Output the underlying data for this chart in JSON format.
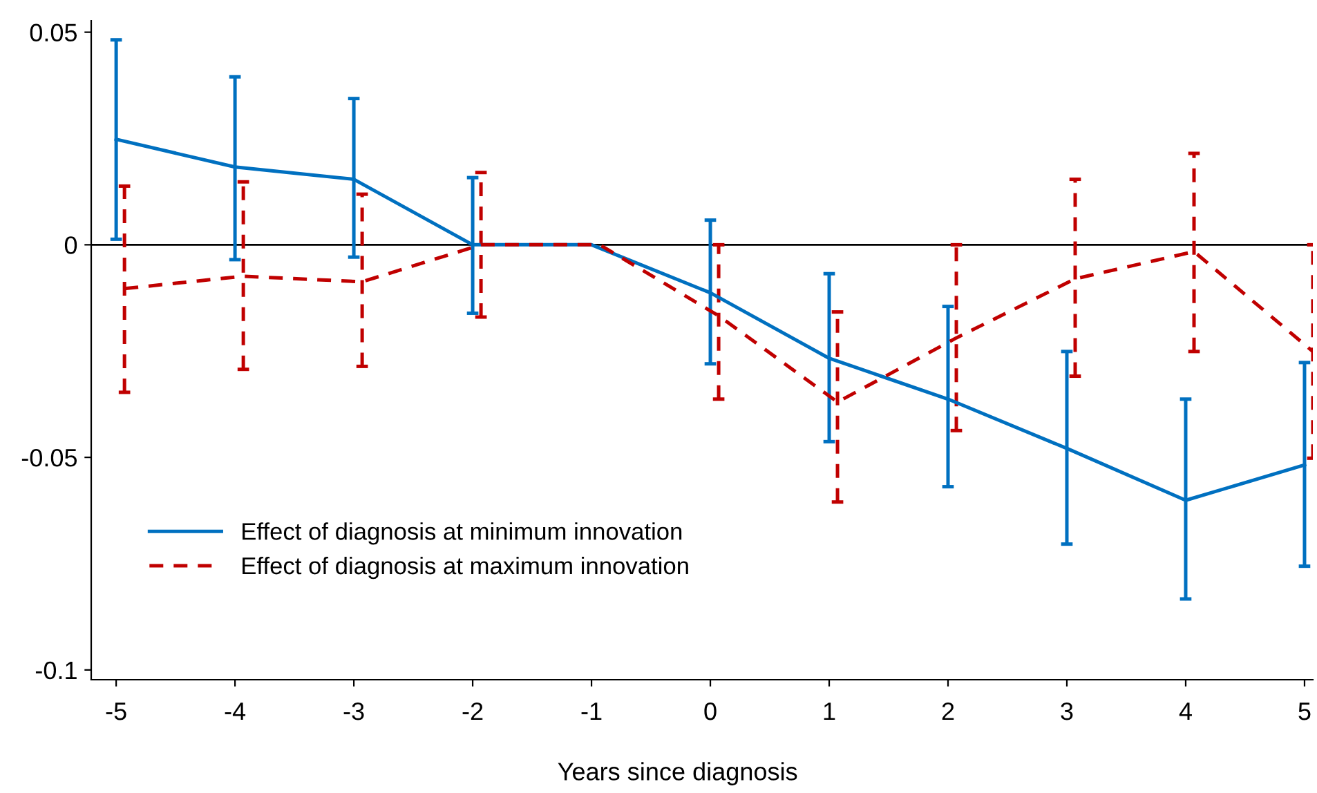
{
  "chart_data": {
    "type": "line",
    "xlabel": "Years since diagnosis",
    "x": [
      -5,
      -4,
      -3,
      -2,
      -1,
      0,
      1,
      2,
      3,
      4,
      5
    ],
    "series": [
      {
        "name": "Effect of diagnosis at minimum innovation",
        "color": "#0070c0",
        "line_style": "solid",
        "values": [
          0.0248,
          0.0183,
          0.0154,
          0,
          0,
          -0.0113,
          -0.0267,
          -0.0363,
          -0.0479,
          -0.0601,
          -0.0518
        ],
        "errors": [
          [
            0.0013,
            0.0482
          ],
          [
            -0.0035,
            0.0395
          ],
          [
            -0.0029,
            0.0344
          ],
          [
            -0.0161,
            0.0158
          ],
          null,
          [
            -0.028,
            0.0058
          ],
          [
            -0.0463,
            -0.0068
          ],
          [
            -0.0569,
            -0.0145
          ],
          [
            -0.0704,
            -0.0251
          ],
          [
            -0.0833,
            -0.0363
          ],
          [
            -0.0756,
            -0.0277
          ]
        ]
      },
      {
        "name": "Effect of diagnosis at maximum innovation",
        "color": "#c00000",
        "line_style": "dashed",
        "x": [
          -4.93,
          -3.93,
          -2.93,
          -1.93,
          -0.93,
          0.07,
          1.07,
          2.07,
          3.07,
          4.07,
          5.07
        ],
        "values": [
          -0.0103,
          -0.0074,
          -0.0087,
          0,
          0,
          -0.0167,
          -0.037,
          -0.0219,
          -0.008,
          -0.0016,
          -0.0251
        ],
        "errors": [
          [
            -0.0347,
            0.0138
          ],
          [
            -0.0293,
            0.0148
          ],
          [
            -0.0286,
            0.0119
          ],
          [
            -0.017,
            0.017
          ],
          null,
          [
            -0.0363,
            0
          ],
          [
            -0.0605,
            -0.0158
          ],
          [
            -0.0437,
            0
          ],
          [
            -0.0309,
            0.0154
          ],
          [
            -0.0251,
            0.0215
          ],
          [
            -0.0502,
            0
          ]
        ]
      }
    ],
    "xlim": [
      -5.21,
      5.07
    ],
    "xticks": [
      -5,
      -4,
      -3,
      -2,
      -1,
      0,
      1,
      2,
      3,
      4,
      5
    ],
    "ylim": [
      -0.1023,
      0.0527
    ],
    "yticks": [
      -0.1,
      -0.05,
      0,
      0.05
    ],
    "ref_lines": [
      {
        "axis": "y",
        "value": 0,
        "color": "#000000"
      }
    ],
    "grid": false,
    "legend": "bottom left",
    "marker": "none"
  }
}
